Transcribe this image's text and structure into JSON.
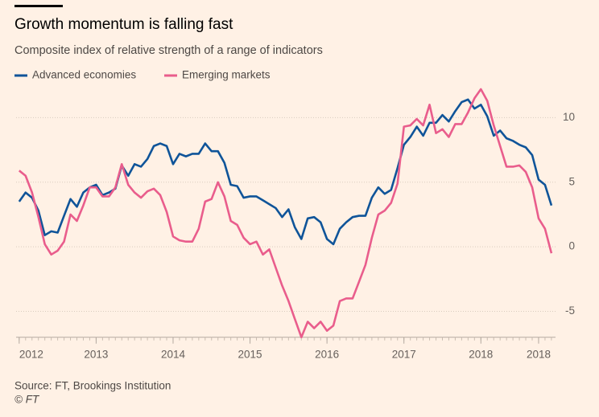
{
  "chart_data": {
    "type": "line",
    "title": "Growth momentum is falling fast",
    "subtitle": "Composite index of relative strength of a range of indicators",
    "source": "Source: FT, Brookings Institution",
    "copyright": "© FT",
    "x": [
      2012,
      2012.083,
      2012.167,
      2012.25,
      2012.333,
      2012.417,
      2012.5,
      2012.583,
      2012.667,
      2012.75,
      2012.833,
      2012.917,
      2013,
      2013.083,
      2013.167,
      2013.25,
      2013.333,
      2013.417,
      2013.5,
      2013.583,
      2013.667,
      2013.75,
      2013.833,
      2013.917,
      2014,
      2014.083,
      2014.167,
      2014.25,
      2014.333,
      2014.417,
      2014.5,
      2014.583,
      2014.667,
      2014.75,
      2014.833,
      2014.917,
      2015,
      2015.083,
      2015.167,
      2015.25,
      2015.333,
      2015.417,
      2015.5,
      2015.583,
      2015.667,
      2015.75,
      2015.833,
      2015.917,
      2016,
      2016.083,
      2016.167,
      2016.25,
      2016.333,
      2016.417,
      2016.5,
      2016.583,
      2016.667,
      2016.75,
      2016.833,
      2016.917,
      2017,
      2017.083,
      2017.167,
      2017.25,
      2017.333,
      2017.417,
      2017.5,
      2017.583,
      2017.667,
      2017.75,
      2017.833,
      2017.917,
      2018,
      2018.083,
      2018.167,
      2018.25,
      2018.333,
      2018.417,
      2018.5,
      2018.583,
      2018.667,
      2018.75,
      2018.833,
      2018.917
    ],
    "series": [
      {
        "name": "Advanced economies",
        "color": "#0f5499",
        "values": [
          3.5,
          4.2,
          3.8,
          2.8,
          0.9,
          1.2,
          1.1,
          2.4,
          3.7,
          3.1,
          4.2,
          4.6,
          4.8,
          4.0,
          4.2,
          4.5,
          6.3,
          5.5,
          6.4,
          6.2,
          6.8,
          7.8,
          8.0,
          7.8,
          6.4,
          7.2,
          7.0,
          7.2,
          7.2,
          8.0,
          7.4,
          7.4,
          6.5,
          4.8,
          4.7,
          3.8,
          3.9,
          3.9,
          3.6,
          3.3,
          3.0,
          2.3,
          2.9,
          1.5,
          0.6,
          2.2,
          2.3,
          1.9,
          0.6,
          0.2,
          1.4,
          1.9,
          2.3,
          2.4,
          2.4,
          3.8,
          4.6,
          4.1,
          4.4,
          6.1,
          7.9,
          8.5,
          9.3,
          8.6,
          9.6,
          9.6,
          10.2,
          9.7,
          10.5,
          11.2,
          11.4,
          10.7,
          11.0,
          10.1,
          8.6,
          9.0,
          8.4,
          8.2,
          7.9,
          7.7,
          7.1,
          5.2,
          4.8,
          3.2
        ]
      },
      {
        "name": "Emerging markets",
        "color": "#e95d8c",
        "values": [
          5.9,
          5.5,
          4.2,
          2.3,
          0.2,
          -0.6,
          -0.3,
          0.4,
          2.5,
          2.0,
          3.2,
          4.6,
          4.6,
          3.9,
          3.9,
          4.6,
          6.4,
          4.8,
          4.2,
          3.8,
          4.3,
          4.5,
          4.0,
          2.7,
          0.8,
          0.5,
          0.4,
          0.4,
          1.4,
          3.5,
          3.7,
          5.0,
          3.9,
          2.0,
          1.7,
          0.7,
          0.2,
          0.4,
          -0.6,
          -0.2,
          -1.6,
          -3.0,
          -4.2,
          -5.6,
          -7.0,
          -5.8,
          -6.3,
          -5.8,
          -6.5,
          -6.1,
          -4.2,
          -4.0,
          -4.0,
          -2.7,
          -1.4,
          0.7,
          2.5,
          2.8,
          3.4,
          4.9,
          9.3,
          9.4,
          9.9,
          9.4,
          11.0,
          8.8,
          9.1,
          8.5,
          9.5,
          9.5,
          10.4,
          11.5,
          12.2,
          11.3,
          9.4,
          7.8,
          6.2,
          6.2,
          6.3,
          5.8,
          4.6,
          2.2,
          1.4,
          -0.5
        ]
      }
    ],
    "xlim": [
      2011.96,
      2018.97
    ],
    "xticks": [
      2012,
      2013,
      2014,
      2015,
      2016,
      2017,
      2018,
      {
        "value": 2018.75,
        "label": "2018"
      }
    ],
    "ylim": [
      -7,
      12.5
    ],
    "yticks": [
      -5,
      0,
      5,
      10
    ],
    "grid": true,
    "legend": "top-left"
  }
}
